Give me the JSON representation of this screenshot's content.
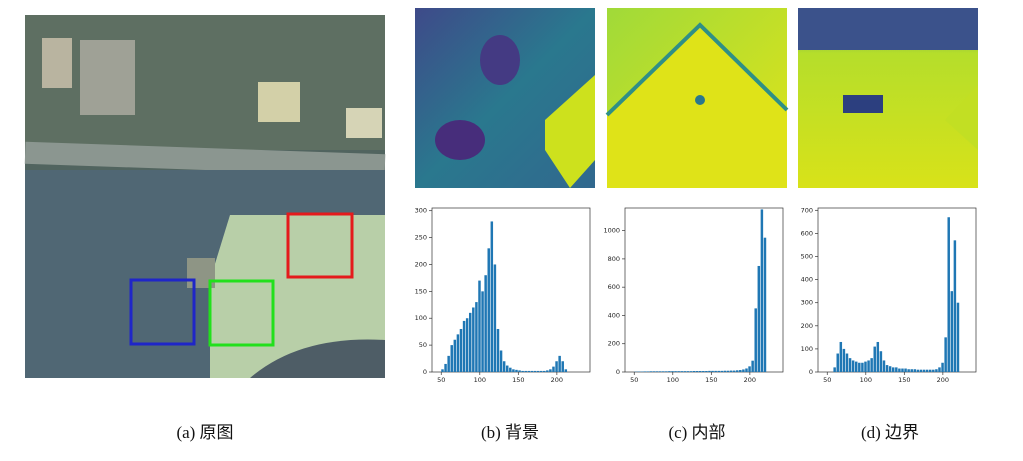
{
  "figure": {
    "captions": [
      "(a) 原图",
      "(b) 背景",
      "(c) 内部",
      "(d) 边界"
    ]
  },
  "chart_data": [
    {
      "type": "histogram",
      "color": "#1f77b4",
      "bins": [
        50,
        54,
        58,
        62,
        66,
        70,
        74,
        78,
        82,
        86,
        90,
        94,
        98,
        102,
        106,
        110,
        114,
        118,
        122,
        126,
        130,
        134,
        138,
        142,
        146,
        150,
        154,
        158,
        162,
        166,
        170,
        174,
        178,
        182,
        186,
        190,
        194,
        198,
        202,
        206,
        210,
        214
      ],
      "values": [
        5,
        15,
        30,
        50,
        60,
        70,
        80,
        95,
        100,
        110,
        120,
        130,
        170,
        150,
        180,
        230,
        280,
        200,
        80,
        40,
        20,
        12,
        8,
        5,
        4,
        3,
        2,
        2,
        2,
        2,
        2,
        2,
        2,
        2,
        3,
        5,
        10,
        20,
        30,
        20,
        5
      ],
      "xlim": [
        38,
        243
      ],
      "xticks": [
        50,
        100,
        150,
        200
      ],
      "ylim": [
        0,
        305
      ],
      "yticks": [
        0,
        50,
        100,
        150,
        200,
        250,
        300
      ]
    },
    {
      "type": "histogram",
      "color": "#1f77b4",
      "bins": [
        50,
        54,
        58,
        62,
        66,
        70,
        74,
        78,
        82,
        86,
        90,
        94,
        98,
        102,
        106,
        110,
        114,
        118,
        122,
        126,
        130,
        134,
        138,
        142,
        146,
        150,
        154,
        158,
        162,
        166,
        170,
        174,
        178,
        182,
        186,
        190,
        194,
        198,
        202,
        206,
        210,
        214,
        218,
        222
      ],
      "values": [
        2,
        3,
        3,
        4,
        4,
        5,
        5,
        5,
        5,
        5,
        5,
        6,
        6,
        6,
        6,
        6,
        6,
        6,
        6,
        7,
        7,
        7,
        7,
        7,
        8,
        8,
        8,
        8,
        8,
        9,
        9,
        10,
        10,
        12,
        14,
        18,
        25,
        40,
        80,
        450,
        750,
        1150,
        950
      ],
      "xlim": [
        38,
        243
      ],
      "xticks": [
        50,
        100,
        150,
        200
      ],
      "ylim": [
        0,
        1160
      ],
      "yticks": [
        0,
        200,
        400,
        600,
        800,
        1000
      ]
    },
    {
      "type": "histogram",
      "color": "#1f77b4",
      "bins": [
        58,
        62,
        66,
        70,
        74,
        78,
        82,
        86,
        90,
        94,
        98,
        102,
        106,
        110,
        114,
        118,
        122,
        126,
        130,
        134,
        138,
        142,
        146,
        150,
        154,
        158,
        162,
        166,
        170,
        174,
        178,
        182,
        186,
        190,
        194,
        198,
        202,
        206,
        210,
        214,
        218,
        222
      ],
      "values": [
        20,
        80,
        130,
        100,
        80,
        60,
        50,
        45,
        40,
        40,
        45,
        50,
        60,
        110,
        130,
        90,
        50,
        30,
        25,
        20,
        20,
        15,
        15,
        15,
        12,
        12,
        12,
        10,
        10,
        10,
        10,
        10,
        10,
        12,
        20,
        40,
        150,
        670,
        350,
        570,
        300
      ],
      "xlim": [
        38,
        243
      ],
      "xticks": [
        50,
        100,
        150,
        200
      ],
      "ylim": [
        0,
        710
      ],
      "yticks": [
        0,
        100,
        200,
        300,
        400,
        500,
        600,
        700
      ]
    }
  ]
}
